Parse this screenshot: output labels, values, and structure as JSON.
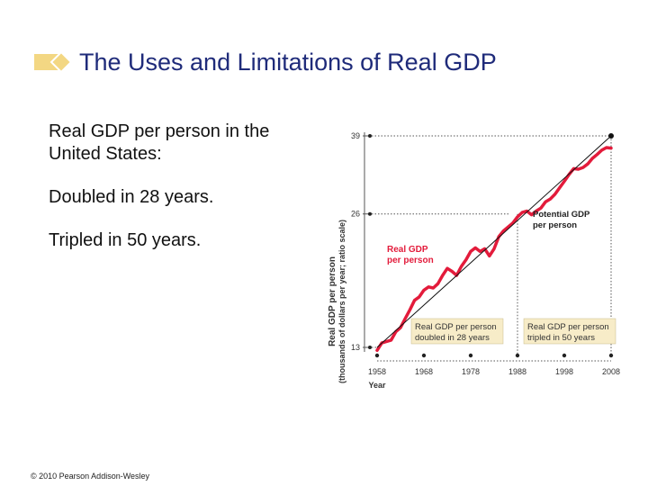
{
  "slide": {
    "title": "The Uses and Limitations of Real GDP",
    "bullets": [
      "Real GDP per person in the United States:",
      "Doubled in 28 years.",
      "Tripled in 50 years."
    ],
    "copyright": "© 2010 Pearson Addison-Wesley"
  },
  "colors": {
    "title": "#1f2b7a",
    "title_icon": "#f3d783",
    "actual_line": "#e31b3b",
    "trend_line": "#111111",
    "callout_bg": "#f7ecc8"
  },
  "chart_data": {
    "type": "line",
    "title": "",
    "xlabel": "Year",
    "ylabel": "Real GDP per person",
    "ylabel_sub": "(thousands of dollars per year; ratio scale)",
    "y_scale": "log",
    "xlim": [
      1958,
      2008
    ],
    "ylim": [
      13,
      39
    ],
    "x_ticks": [
      1958,
      1968,
      1978,
      1988,
      1998,
      2008
    ],
    "y_ticks": [
      13,
      26,
      39
    ],
    "series": [
      {
        "name": "Real GDP per person",
        "style": "actual",
        "x": [
          1958,
          1959,
          1960,
          1961,
          1962,
          1963,
          1964,
          1965,
          1966,
          1967,
          1968,
          1969,
          1970,
          1971,
          1972,
          1973,
          1974,
          1975,
          1976,
          1977,
          1978,
          1979,
          1980,
          1981,
          1982,
          1983,
          1984,
          1985,
          1986,
          1987,
          1988,
          1989,
          1990,
          1991,
          1992,
          1993,
          1994,
          1995,
          1996,
          1997,
          1998,
          1999,
          2000,
          2001,
          2002,
          2003,
          2004,
          2005,
          2006,
          2007,
          2008
        ],
        "values": [
          12.8,
          13.3,
          13.4,
          13.5,
          14.1,
          14.4,
          15.1,
          15.8,
          16.6,
          16.9,
          17.5,
          17.8,
          17.7,
          18.1,
          18.9,
          19.6,
          19.3,
          18.9,
          19.8,
          20.5,
          21.4,
          21.8,
          21.4,
          21.7,
          20.9,
          21.7,
          23.1,
          23.8,
          24.3,
          24.8,
          25.6,
          26.2,
          26.4,
          25.9,
          26.4,
          26.8,
          27.7,
          28.1,
          28.8,
          29.8,
          30.8,
          31.9,
          32.9,
          32.8,
          33.1,
          33.7,
          34.7,
          35.4,
          36.2,
          36.7,
          36.6
        ]
      },
      {
        "name": "Potential GDP per person",
        "style": "trend",
        "x": [
          1958,
          2008
        ],
        "values": [
          13.0,
          39.0
        ]
      }
    ],
    "annotations": [
      {
        "text": "Real GDP per person",
        "anchor": "left of actual line"
      },
      {
        "text": "Potential GDP per person",
        "anchor": "right of trend line"
      }
    ],
    "callouts": [
      {
        "text_lines": [
          "Real GDP per person",
          "doubled in 28 years"
        ],
        "x_start": 1958,
        "x_end": 1986
      },
      {
        "text_lines": [
          "Real GDP per person",
          "tripled in 50 years"
        ],
        "x_start": 1988,
        "x_end": 2008
      }
    ]
  }
}
